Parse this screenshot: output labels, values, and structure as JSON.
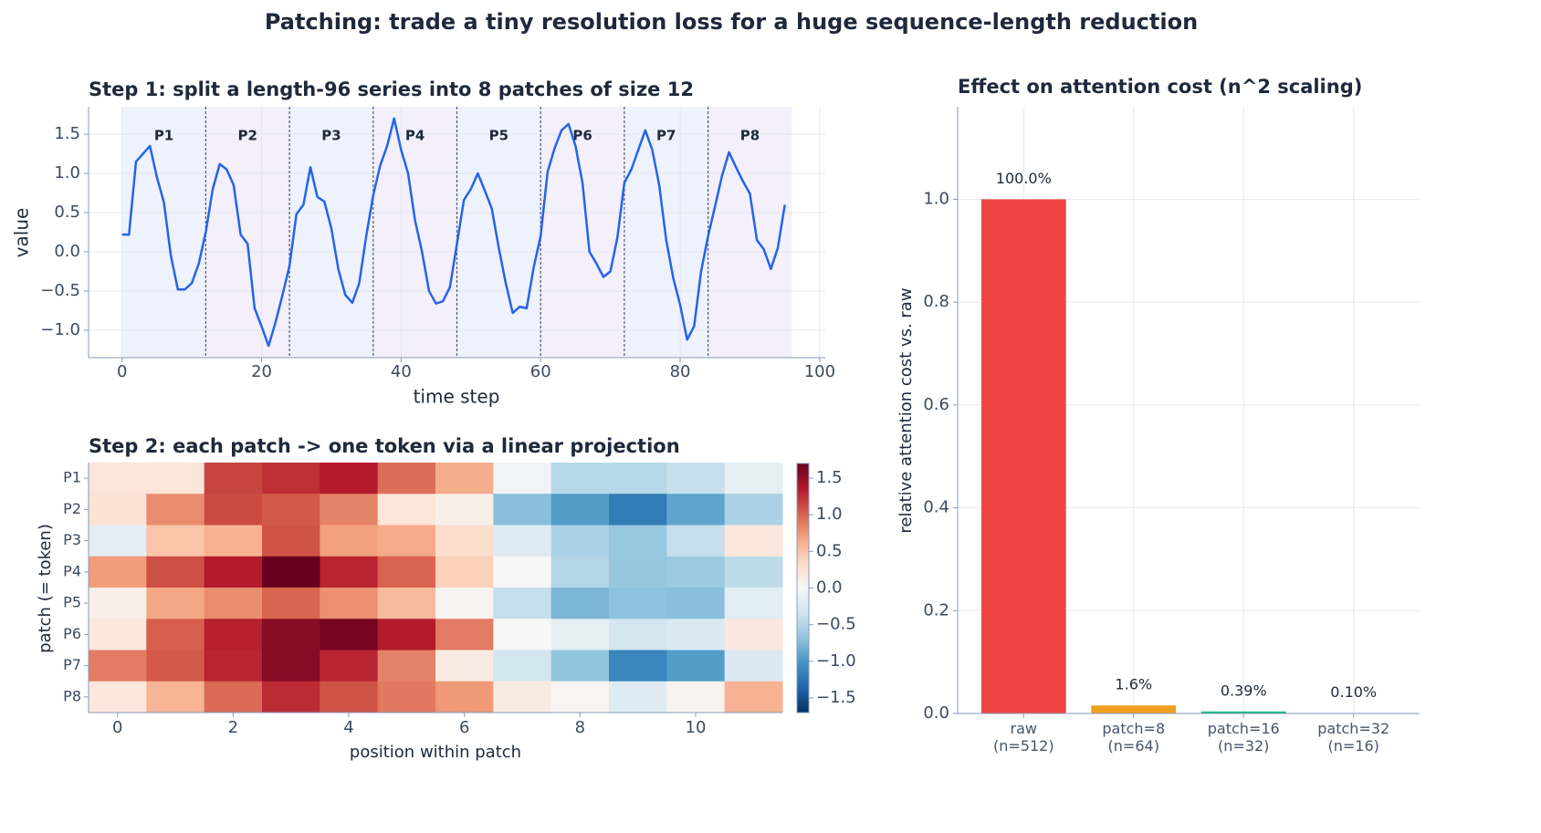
{
  "title": "Patching: trade a tiny resolution loss for a huge sequence-length reduction",
  "chart_data": [
    {
      "type": "line",
      "title": "Step 1: split a length-96 series into 8 patches of size 12",
      "xlabel": "time step",
      "ylabel": "value",
      "color": "#2563eb",
      "x": [
        0,
        1,
        2,
        3,
        4,
        5,
        6,
        7,
        8,
        9,
        10,
        11,
        12,
        13,
        14,
        15,
        16,
        17,
        18,
        19,
        20,
        21,
        22,
        23,
        24,
        25,
        26,
        27,
        28,
        29,
        30,
        31,
        32,
        33,
        34,
        35,
        36,
        37,
        38,
        39,
        40,
        41,
        42,
        43,
        44,
        45,
        46,
        47,
        48,
        49,
        50,
        51,
        52,
        53,
        54,
        55,
        56,
        57,
        58,
        59,
        60,
        61,
        62,
        63,
        64,
        65,
        66,
        67,
        68,
        69,
        70,
        71,
        72,
        73,
        74,
        75,
        76,
        77,
        78,
        79,
        80,
        81,
        82,
        83,
        84,
        85,
        86,
        87,
        88,
        89,
        90,
        91,
        92,
        93,
        94,
        95
      ],
      "values": [
        0.22,
        0.22,
        1.15,
        1.25,
        1.35,
        0.95,
        0.63,
        -0.05,
        -0.48,
        -0.48,
        -0.4,
        -0.15,
        0.25,
        0.8,
        1.12,
        1.05,
        0.85,
        0.22,
        0.1,
        -0.72,
        -0.95,
        -1.2,
        -0.9,
        -0.55,
        -0.18,
        0.48,
        0.6,
        1.08,
        0.7,
        0.64,
        0.3,
        -0.22,
        -0.55,
        -0.65,
        -0.4,
        0.2,
        0.72,
        1.1,
        1.35,
        1.7,
        1.3,
        1.0,
        0.4,
        0.0,
        -0.5,
        -0.66,
        -0.63,
        -0.45,
        0.1,
        0.66,
        0.8,
        1.0,
        0.78,
        0.55,
        0.05,
        -0.4,
        -0.78,
        -0.7,
        -0.72,
        -0.2,
        0.2,
        1.02,
        1.32,
        1.55,
        1.63,
        1.35,
        0.88,
        0.0,
        -0.15,
        -0.32,
        -0.25,
        0.18,
        0.88,
        1.05,
        1.3,
        1.55,
        1.3,
        0.85,
        0.15,
        -0.33,
        -0.68,
        -1.12,
        -0.95,
        -0.25,
        0.2,
        0.58,
        0.97,
        1.27,
        1.08,
        0.9,
        0.74,
        0.15,
        0.03,
        -0.22,
        0.05,
        0.6
      ],
      "patches": [
        {
          "label": "P1",
          "start": 0,
          "end": 12
        },
        {
          "label": "P2",
          "start": 12,
          "end": 24
        },
        {
          "label": "P3",
          "start": 24,
          "end": 36
        },
        {
          "label": "P4",
          "start": 36,
          "end": 48
        },
        {
          "label": "P5",
          "start": 48,
          "end": 60
        },
        {
          "label": "P6",
          "start": 60,
          "end": 72
        },
        {
          "label": "P7",
          "start": 72,
          "end": 84
        },
        {
          "label": "P8",
          "start": 84,
          "end": 96
        }
      ],
      "patch_colors": [
        "#eef2fc",
        "#f3effb"
      ],
      "xlim": [
        -4.8,
        100.8
      ],
      "ylim": [
        -1.35,
        1.85
      ],
      "xticks": [
        0,
        20,
        40,
        60,
        80,
        100
      ],
      "yticks": [
        {
          "value": -1,
          "label": "−1.0"
        },
        {
          "value": -0.5,
          "label": "−0.5"
        },
        {
          "value": 0,
          "label": "0.0"
        },
        0.5,
        {
          "value": 1,
          "label": "1.0"
        },
        1.5
      ],
      "grid": true
    },
    {
      "type": "heatmap",
      "title": "Step 2: each patch -> one token via a linear projection",
      "xlabel": "position within patch",
      "ylabel": "patch (= token)",
      "categories": [
        "P1",
        "P2",
        "P3",
        "P4",
        "P5",
        "P6",
        "P7",
        "P8"
      ],
      "z": [
        [
          0.22,
          0.22,
          1.15,
          1.25,
          1.35,
          0.95,
          0.63,
          -0.05,
          -0.48,
          -0.48,
          -0.4,
          -0.15
        ],
        [
          0.25,
          0.8,
          1.12,
          1.05,
          0.85,
          0.22,
          0.1,
          -0.72,
          -0.95,
          -1.2,
          -0.9,
          -0.55
        ],
        [
          -0.18,
          0.48,
          0.6,
          1.08,
          0.7,
          0.64,
          0.3,
          -0.22,
          -0.55,
          -0.65,
          -0.4,
          0.2
        ],
        [
          0.72,
          1.1,
          1.35,
          1.7,
          1.3,
          1.0,
          0.4,
          0.0,
          -0.5,
          -0.66,
          -0.63,
          -0.45
        ],
        [
          0.1,
          0.66,
          0.8,
          1.0,
          0.78,
          0.55,
          0.05,
          -0.4,
          -0.78,
          -0.7,
          -0.72,
          -0.2
        ],
        [
          0.2,
          1.02,
          1.32,
          1.55,
          1.63,
          1.35,
          0.88,
          0.0,
          -0.15,
          -0.32,
          -0.25,
          0.18
        ],
        [
          0.88,
          1.05,
          1.3,
          1.55,
          1.3,
          0.85,
          0.15,
          -0.33,
          -0.68,
          -1.12,
          -0.95,
          -0.25
        ],
        [
          0.2,
          0.58,
          0.97,
          1.27,
          1.08,
          0.9,
          0.74,
          0.15,
          0.03,
          -0.22,
          0.05,
          0.6
        ]
      ],
      "xlim": [
        -0.5,
        11.5
      ],
      "xticks": [
        0,
        2,
        4,
        6,
        8,
        10
      ],
      "zlim": [
        -1.7,
        1.7
      ],
      "zticks": [
        {
          "value": -1.5,
          "label": "−1.5"
        },
        {
          "value": -1,
          "label": "−1.0"
        },
        {
          "value": -0.5,
          "label": "−0.5"
        },
        {
          "value": 0,
          "label": "0.0"
        },
        0.5,
        {
          "value": 1,
          "label": "1.0"
        },
        1.5
      ],
      "colorscale": [
        "#053061",
        "#2166ac",
        "#4393c3",
        "#92c5de",
        "#d1e5f0",
        "#f7f7f7",
        "#fddbc7",
        "#f4a582",
        "#d6604d",
        "#b2182b",
        "#67001f"
      ]
    },
    {
      "type": "bar",
      "title": "Effect on attention cost (n^2 scaling)",
      "ylabel": "relative attention cost vs. raw",
      "categories": [
        "raw\n(n=512)",
        "patch=8\n(n=64)",
        "patch=16\n(n=32)",
        "patch=32\n(n=16)"
      ],
      "values": [
        1.0,
        0.015625,
        0.00390625,
        0.0009765625
      ],
      "value_labels": [
        "100.0%",
        "1.6%",
        "0.39%",
        "0.10%"
      ],
      "colors": [
        "#ef4444",
        "#f0a020",
        "#10b981",
        "#3b82f6"
      ],
      "ylim": [
        0,
        1.18
      ],
      "yticks": [
        {
          "value": 0,
          "label": "0.0"
        },
        0.2,
        0.4,
        0.6,
        0.8,
        {
          "value": 1,
          "label": "1.0"
        }
      ],
      "grid": true
    }
  ]
}
